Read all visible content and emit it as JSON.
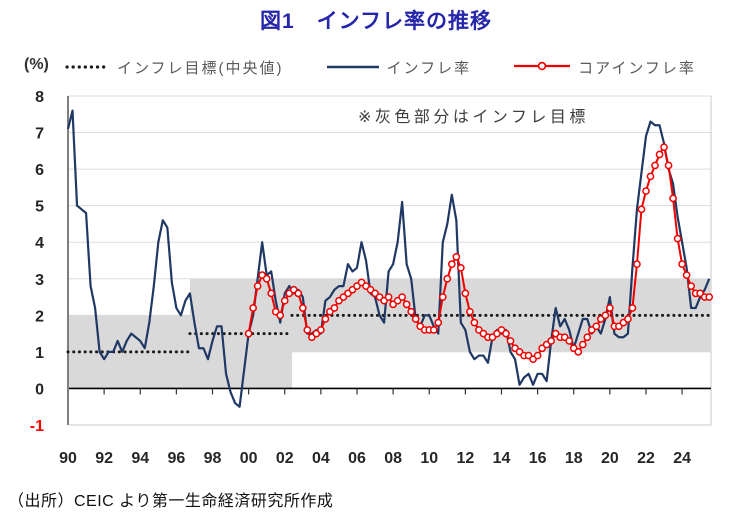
{
  "title": "図1　インフレ率の推移",
  "unit_label": "(%)",
  "annotation": "※灰色部分はインフレ目標",
  "source": "（出所）CEIC より第一生命経済研究所作成",
  "legend": [
    {
      "label": "インフレ目標(中央値)",
      "swatch": "black-dotted-line"
    },
    {
      "label": "インフレ率",
      "swatch": "navy-solid-line"
    },
    {
      "label": "コアインフレ率",
      "swatch": "red-line-open-circle"
    }
  ],
  "chart_data": {
    "type": "line",
    "title": "図1　インフレ率の推移",
    "ylabel": "(%)",
    "xlabel": "",
    "grid": "horizontal",
    "legend_position": "top",
    "x_axis": {
      "min": 1990.0,
      "max": 2025.6,
      "ticks": [
        {
          "year": 1990,
          "label": "90"
        },
        {
          "year": 1992,
          "label": "92"
        },
        {
          "year": 1994,
          "label": "94"
        },
        {
          "year": 1996,
          "label": "96"
        },
        {
          "year": 1998,
          "label": "98"
        },
        {
          "year": 2000,
          "label": "00"
        },
        {
          "year": 2002,
          "label": "02"
        },
        {
          "year": 2004,
          "label": "04"
        },
        {
          "year": 2006,
          "label": "06"
        },
        {
          "year": 2008,
          "label": "08"
        },
        {
          "year": 2010,
          "label": "10"
        },
        {
          "year": 2012,
          "label": "12"
        },
        {
          "year": 2014,
          "label": "14"
        },
        {
          "year": 2016,
          "label": "16"
        },
        {
          "year": 2018,
          "label": "18"
        },
        {
          "year": 2020,
          "label": "20"
        },
        {
          "year": 2022,
          "label": "22"
        },
        {
          "year": 2024,
          "label": "24"
        }
      ]
    },
    "y_axis": {
      "min": -1,
      "max": 8,
      "grid_values": [
        1,
        2,
        3,
        4,
        5,
        6,
        7,
        8
      ],
      "ticks": [
        {
          "value": 8,
          "label": "8"
        },
        {
          "value": 7,
          "label": "7"
        },
        {
          "value": 6,
          "label": "6"
        },
        {
          "value": 5,
          "label": "5"
        },
        {
          "value": 4,
          "label": "4"
        },
        {
          "value": 3,
          "label": "3"
        },
        {
          "value": 2,
          "label": "2"
        },
        {
          "value": 1,
          "label": "1"
        },
        {
          "value": 0,
          "label": "0"
        },
        {
          "value": -1,
          "label": "-1"
        }
      ]
    },
    "target_band_segments": [
      {
        "from": 1990.0,
        "to": 1996.75,
        "low": 0,
        "high": 2
      },
      {
        "from": 1996.75,
        "to": 2002.4,
        "low": 0,
        "high": 3
      },
      {
        "from": 2002.4,
        "to": 2025.6,
        "low": 1,
        "high": 3
      }
    ],
    "series": [
      {
        "name": "インフレ目標(中央値)",
        "style": "dotted",
        "color": "#1a1a1a",
        "segments": [
          {
            "from": 1990.0,
            "to": 1996.75,
            "value": 1.0
          },
          {
            "from": 1996.75,
            "to": 2002.4,
            "value": 1.5
          },
          {
            "from": 2002.4,
            "to": 2025.6,
            "value": 2.0
          }
        ]
      },
      {
        "name": "インフレ率",
        "style": "solid",
        "color": "#1f3864",
        "freq": "quarterly",
        "start": 1990.0,
        "values": [
          7.1,
          7.6,
          5.0,
          4.9,
          4.8,
          2.8,
          2.2,
          1.0,
          0.8,
          1.0,
          1.0,
          1.3,
          1.0,
          1.3,
          1.5,
          1.4,
          1.3,
          1.1,
          1.8,
          2.8,
          4.0,
          4.6,
          4.4,
          2.9,
          2.2,
          2.0,
          2.4,
          2.6,
          1.8,
          1.1,
          1.1,
          0.8,
          1.3,
          1.7,
          1.7,
          0.4,
          -0.1,
          -0.4,
          -0.5,
          0.5,
          1.5,
          2.0,
          3.0,
          4.0,
          3.1,
          3.2,
          2.4,
          1.8,
          2.6,
          2.8,
          2.6,
          2.7,
          2.5,
          1.5,
          1.5,
          1.6,
          1.5,
          2.4,
          2.5,
          2.7,
          2.8,
          2.8,
          3.4,
          3.2,
          3.3,
          4.0,
          3.5,
          2.6,
          2.5,
          2.0,
          1.8,
          3.2,
          3.4,
          4.0,
          5.1,
          3.4,
          3.0,
          1.9,
          1.7,
          2.0,
          2.0,
          1.7,
          1.5,
          4.0,
          4.5,
          5.3,
          4.6,
          1.8,
          1.6,
          1.0,
          0.8,
          0.9,
          0.9,
          0.7,
          1.4,
          1.6,
          1.5,
          1.6,
          1.0,
          0.8,
          0.1,
          0.3,
          0.4,
          0.1,
          0.4,
          0.4,
          0.2,
          1.3,
          2.2,
          1.7,
          1.9,
          1.6,
          1.1,
          1.5,
          1.9,
          1.9,
          1.5,
          1.7,
          1.5,
          1.9,
          2.5,
          1.5,
          1.4,
          1.4,
          1.5,
          3.3,
          4.9,
          5.9,
          6.9,
          7.3,
          7.2,
          7.2,
          6.7,
          6.0,
          5.6,
          4.7,
          4.0,
          3.3,
          2.2,
          2.2,
          2.5,
          2.7,
          3.0
        ]
      },
      {
        "name": "コアインフレ率",
        "style": "solid-open-circle",
        "color": "#f20000",
        "freq": "quarterly",
        "start": 2000.0,
        "values": [
          1.5,
          2.2,
          2.8,
          3.1,
          3.0,
          2.6,
          2.1,
          2.0,
          2.4,
          2.6,
          2.7,
          2.6,
          2.2,
          1.6,
          1.4,
          1.5,
          1.6,
          1.9,
          2.1,
          2.2,
          2.4,
          2.5,
          2.6,
          2.7,
          2.8,
          2.9,
          2.8,
          2.7,
          2.6,
          2.5,
          2.4,
          2.5,
          2.3,
          2.4,
          2.5,
          2.3,
          2.1,
          1.9,
          1.7,
          1.6,
          1.6,
          1.6,
          1.8,
          2.5,
          3.0,
          3.4,
          3.6,
          3.3,
          2.6,
          2.1,
          1.8,
          1.6,
          1.5,
          1.4,
          1.4,
          1.5,
          1.6,
          1.5,
          1.3,
          1.1,
          1.0,
          0.9,
          0.9,
          0.8,
          0.9,
          1.1,
          1.2,
          1.3,
          1.5,
          1.4,
          1.4,
          1.3,
          1.1,
          1.0,
          1.2,
          1.4,
          1.6,
          1.7,
          1.9,
          2.0,
          2.2,
          1.7,
          1.7,
          1.8,
          1.9,
          2.2,
          3.4,
          4.9,
          5.4,
          5.8,
          6.1,
          6.4,
          6.6,
          6.1,
          5.2,
          4.1,
          3.4,
          3.1,
          2.8,
          2.6,
          2.6,
          2.5,
          2.5
        ]
      }
    ],
    "colors": {
      "band": "#d9d9d9",
      "grid": "#dcdcdc",
      "zero_line": "#000000",
      "axis": "#7f7f7f",
      "frame": "#c9c9c9",
      "tick_mark": "#333333",
      "tick_label": "#262626",
      "negative_tick_label": "#ff0000",
      "title": "#2626ab"
    }
  }
}
